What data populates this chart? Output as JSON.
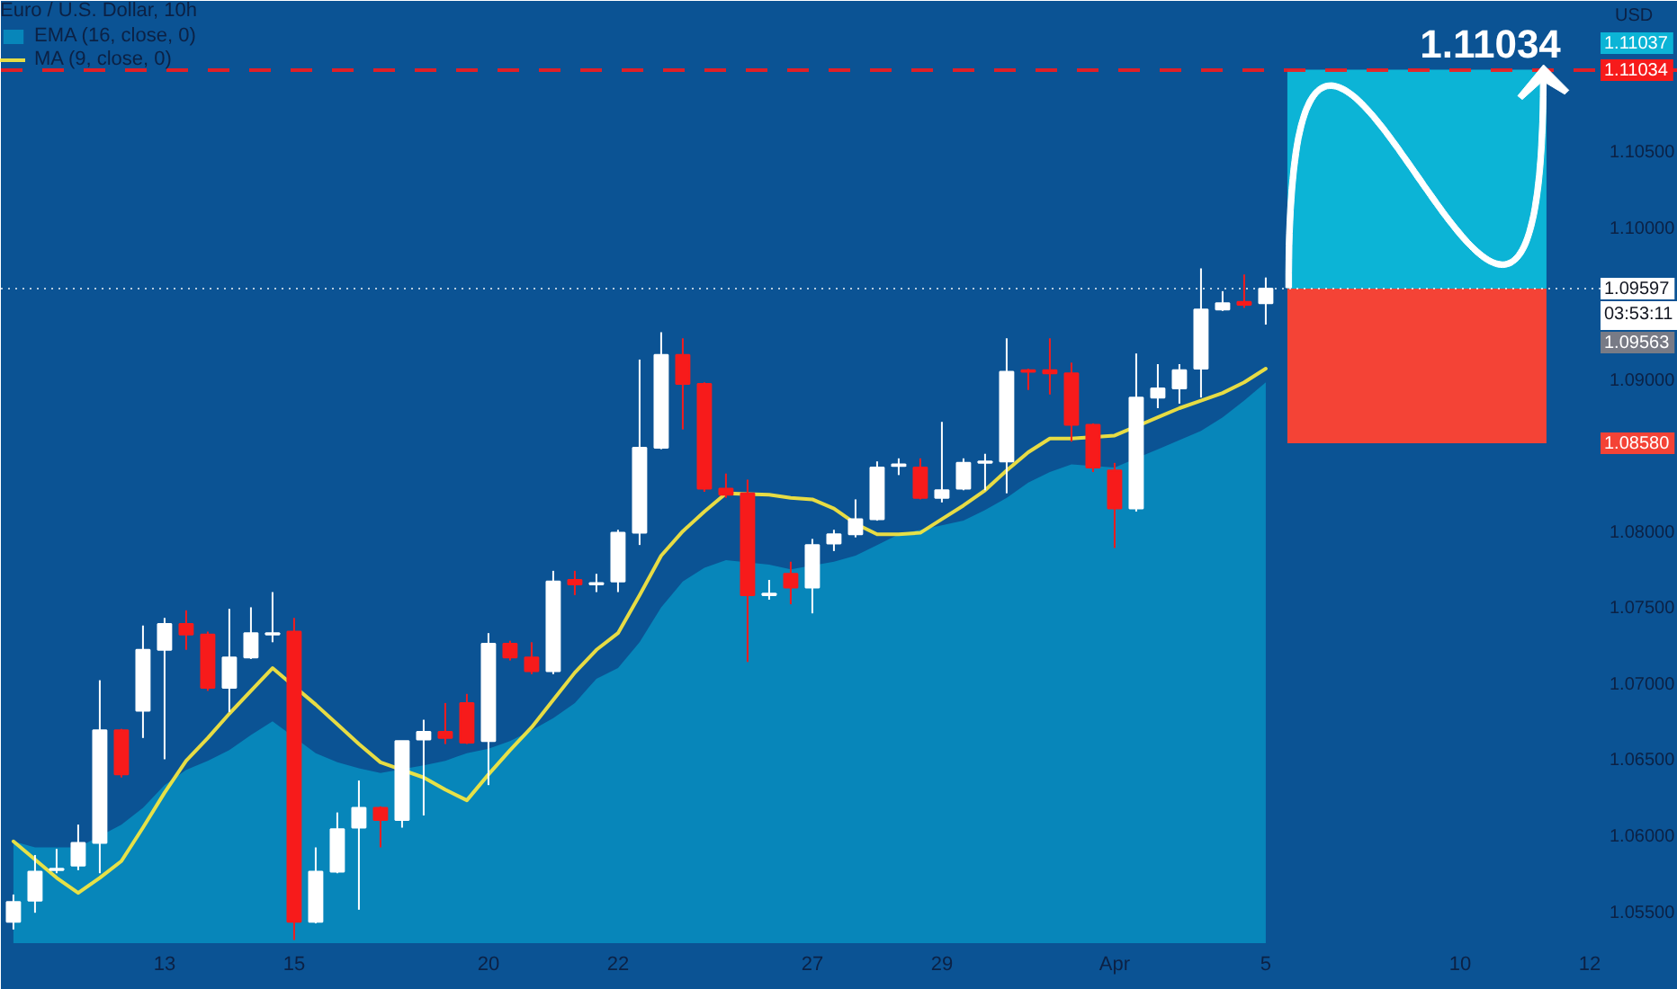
{
  "chart_data": {
    "type": "candlestick",
    "title": "Euro / U.S. Dollar, 10h",
    "ylabel": "USD",
    "categories": [
      null,
      null,
      null,
      null,
      null,
      null,
      null,
      "13",
      null,
      null,
      null,
      null,
      null,
      "15",
      null,
      null,
      null,
      null,
      null,
      null,
      null,
      null,
      "20",
      null,
      null,
      null,
      null,
      null,
      "22",
      null,
      null,
      null,
      null,
      null,
      null,
      null,
      null,
      "27",
      null,
      null,
      null,
      null,
      null,
      "29",
      null,
      null,
      null,
      null,
      null,
      null,
      null,
      "Apr",
      null,
      null,
      null,
      null,
      null,
      null,
      "5",
      null,
      null,
      null,
      null,
      null,
      null,
      null,
      null,
      "10",
      null,
      null,
      null,
      null,
      null,
      "12"
    ],
    "ohlc": [
      [
        1.0543,
        1.0561,
        1.0538,
        1.0556
      ],
      [
        1.0557,
        1.0587,
        1.0549,
        1.0576
      ],
      [
        1.0577,
        1.0591,
        1.0575,
        1.0578
      ],
      [
        1.058,
        1.0607,
        1.0577,
        1.0595
      ],
      [
        1.0595,
        1.0702,
        1.0575,
        1.0669
      ],
      [
        1.0669,
        1.067,
        1.0638,
        1.064
      ],
      [
        1.0682,
        1.0738,
        1.0664,
        1.0722
      ],
      [
        1.0722,
        1.0743,
        1.065,
        1.0739
      ],
      [
        1.0739,
        1.0748,
        1.0722,
        1.0732
      ],
      [
        1.0732,
        1.0734,
        1.0695,
        1.0697
      ],
      [
        1.0697,
        1.0749,
        1.0681,
        1.0717
      ],
      [
        1.0717,
        1.075,
        1.0716,
        1.0733
      ],
      [
        1.0732,
        1.076,
        1.0727,
        1.0733
      ],
      [
        1.0734,
        1.0743,
        1.0531,
        1.0543
      ],
      [
        1.0543,
        1.0592,
        1.0542,
        1.0576
      ],
      [
        1.0576,
        1.0615,
        1.0575,
        1.0604
      ],
      [
        1.0605,
        1.0636,
        1.0551,
        1.0618
      ],
      [
        1.0618,
        1.0619,
        1.0592,
        1.061
      ],
      [
        1.061,
        1.0662,
        1.0605,
        1.0662
      ],
      [
        1.0663,
        1.0676,
        1.0613,
        1.0668
      ],
      [
        1.0668,
        1.0687,
        1.066,
        1.0664
      ],
      [
        1.0687,
        1.0693,
        1.066,
        1.0661
      ],
      [
        1.0662,
        1.0733,
        1.0633,
        1.0726
      ],
      [
        1.0726,
        1.0728,
        1.0715,
        1.0717
      ],
      [
        1.0717,
        1.0727,
        1.0706,
        1.0708
      ],
      [
        1.0708,
        1.0774,
        1.0706,
        1.0767
      ],
      [
        1.0768,
        1.0774,
        1.0758,
        1.0765
      ],
      [
        1.0765,
        1.0772,
        1.076,
        1.0766
      ],
      [
        1.0767,
        1.0801,
        1.076,
        1.0799
      ],
      [
        1.0799,
        1.0913,
        1.0791,
        1.0855
      ],
      [
        1.0855,
        1.0931,
        1.0854,
        1.0916
      ],
      [
        1.0916,
        1.0927,
        1.0867,
        1.0897
      ],
      [
        1.0897,
        1.0898,
        1.0826,
        1.0828
      ],
      [
        1.0828,
        1.0838,
        1.0822,
        1.0824
      ],
      [
        1.0825,
        1.0834,
        1.0714,
        1.0758
      ],
      [
        1.0758,
        1.0768,
        1.0755,
        1.0759
      ],
      [
        1.0772,
        1.078,
        1.0752,
        1.0763
      ],
      [
        1.0763,
        1.0795,
        1.0746,
        1.0791
      ],
      [
        1.0792,
        1.0801,
        1.0787,
        1.0798
      ],
      [
        1.0798,
        1.0821,
        1.0796,
        1.0808
      ],
      [
        1.0808,
        1.0846,
        1.0807,
        1.0842
      ],
      [
        1.0843,
        1.0848,
        1.0837,
        1.0844
      ],
      [
        1.0842,
        1.0848,
        1.0821,
        1.0822
      ],
      [
        1.0822,
        1.0872,
        1.0819,
        1.0827
      ],
      [
        1.0828,
        1.0848,
        1.0827,
        1.0845
      ],
      [
        1.0845,
        1.0851,
        1.0827,
        1.0846
      ],
      [
        1.0846,
        1.0927,
        1.0825,
        1.0905
      ],
      [
        1.0906,
        1.0907,
        1.0893,
        1.0905
      ],
      [
        1.0906,
        1.0927,
        1.089,
        1.0904
      ],
      [
        1.0904,
        1.0911,
        1.0859,
        1.087
      ],
      [
        1.087,
        1.0871,
        1.0839,
        1.0842
      ],
      [
        1.084,
        1.0845,
        1.0789,
        1.0815
      ],
      [
        1.0815,
        1.0917,
        1.0813,
        1.0888
      ],
      [
        1.0888,
        1.091,
        1.0881,
        1.0894
      ],
      [
        1.0894,
        1.091,
        1.0884,
        1.0906
      ],
      [
        1.0907,
        1.0973,
        1.0888,
        1.0946
      ],
      [
        1.0946,
        1.0958,
        1.0945,
        1.095
      ],
      [
        1.0951,
        1.0969,
        1.0947,
        1.0949
      ],
      [
        1.095,
        1.0967,
        1.0936,
        1.09597
      ],
      null,
      null,
      null,
      null,
      null,
      null,
      null,
      null,
      null,
      null,
      null,
      null,
      null,
      null,
      null
    ],
    "colors": [
      "#ffffff",
      "#ffffff",
      "#ffffff",
      "#ffffff",
      "#ffffff",
      "#f71b1b",
      "#ffffff",
      "#ffffff",
      "#f71b1b",
      "#f71b1b",
      "#ffffff",
      "#ffffff",
      "#ffffff",
      "#f71b1b",
      "#ffffff",
      "#ffffff",
      "#ffffff",
      "#f71b1b",
      "#ffffff",
      "#ffffff",
      "#f71b1b",
      "#f71b1b",
      "#ffffff",
      "#f71b1b",
      "#f71b1b",
      "#ffffff",
      "#f71b1b",
      "#ffffff",
      "#ffffff",
      "#ffffff",
      "#ffffff",
      "#f71b1b",
      "#f71b1b",
      "#f71b1b",
      "#f71b1b",
      "#ffffff",
      "#f71b1b",
      "#ffffff",
      "#ffffff",
      "#ffffff",
      "#ffffff",
      "#ffffff",
      "#f71b1b",
      "#ffffff",
      "#ffffff",
      "#ffffff",
      "#ffffff",
      "#f71b1b",
      "#f71b1b",
      "#f71b1b",
      "#f71b1b",
      "#f71b1b",
      "#ffffff",
      "#ffffff",
      "#ffffff",
      "#ffffff",
      "#ffffff",
      "#f71b1b",
      "#ffffff",
      null,
      null,
      null,
      null,
      null,
      null,
      null,
      null,
      null,
      null,
      null,
      null,
      null,
      null,
      null
    ],
    "series": [
      {
        "name": "EMA (16, close, 0)",
        "type": "area",
        "color": "#0786ba",
        "values": [
          1.0596,
          1.0592,
          1.0592,
          1.0592,
          null,
          1.0607,
          1.0618,
          1.0633,
          1.0643,
          1.0649,
          1.0656,
          1.0666,
          1.0675,
          null,
          1.0654,
          1.0648,
          1.0644,
          1.0641,
          null,
          1.0646,
          1.0649,
          1.0654,
          1.0657,
          1.0662,
          1.0669,
          1.0677,
          1.0687,
          1.0703,
          1.071,
          1.0727,
          1.075,
          1.0767,
          1.0776,
          1.0781,
          null,
          1.0778,
          1.0775,
          null,
          1.078,
          1.0784,
          1.0791,
          1.0798,
          1.0801,
          1.0804,
          1.0807,
          1.0814,
          1.0822,
          1.0832,
          1.0839,
          1.0844,
          null,
          1.0842,
          null,
          1.0854,
          1.086,
          1.0866,
          1.0875,
          1.0886,
          1.0898,
          null,
          null,
          null,
          null,
          null,
          null,
          null,
          null,
          null,
          null,
          null,
          null,
          null,
          null,
          null
        ]
      },
      {
        "name": "MA (9, close, 0)",
        "type": "line",
        "color": "#ffeb3b",
        "values": [
          1.0596,
          1.0584,
          1.0572,
          1.0562,
          1.0572,
          1.0583,
          1.0605,
          1.0628,
          1.0649,
          1.0664,
          1.068,
          1.0695,
          1.071,
          null,
          1.0686,
          1.0673,
          1.066,
          1.0648,
          null,
          1.0638,
          1.063,
          1.0623,
          1.064,
          1.0656,
          1.0671,
          1.0689,
          1.0707,
          1.0722,
          1.0733,
          1.0758,
          1.0784,
          1.08,
          1.0813,
          1.0825,
          null,
          1.0824,
          1.0822,
          1.0821,
          1.0815,
          1.0805,
          1.0798,
          1.0798,
          1.0799,
          1.0808,
          1.0817,
          1.0827,
          1.084,
          1.0852,
          1.0861,
          1.0861,
          null,
          1.0863,
          null,
          1.0875,
          1.0881,
          1.0886,
          1.0891,
          1.0898,
          1.0907,
          null,
          null,
          null,
          null,
          null,
          null,
          null,
          null,
          null,
          null,
          null,
          null,
          null,
          null,
          null
        ]
      }
    ],
    "ylim": [
      1.0529,
      1.1149
    ],
    "yticks": [
      {
        "value": 1.055,
        "label": "1.05500"
      },
      {
        "value": 1.06,
        "label": "1.06000"
      },
      {
        "value": 1.065,
        "label": "1.06500"
      },
      {
        "value": 1.07,
        "label": "1.07000"
      },
      {
        "value": 1.075,
        "label": "1.07500"
      },
      {
        "value": 1.08,
        "label": "1.08000"
      },
      {
        "value": 1.09,
        "label": "1.09000"
      },
      {
        "value": 1.1,
        "label": "1.10000"
      },
      {
        "value": 1.105,
        "label": "1.10500"
      }
    ],
    "ref_lines": [
      {
        "axis": "y",
        "value": 1.11034,
        "label": "1.11034",
        "color": "#f71b1b",
        "line_style": "dashed"
      },
      {
        "axis": "y",
        "value": 1.09597,
        "label": "1.09597",
        "color": "#ffffff",
        "line_style": "dotted"
      }
    ],
    "bands": [
      {
        "axis": "y",
        "from": 1.09597,
        "to": 1.11037,
        "color": "#0cb4d6"
      },
      {
        "axis": "y",
        "from": 1.0858,
        "to": 1.09597,
        "color": "#f44336"
      }
    ],
    "annotations": [
      "1.11034",
      "03:53:11",
      "1.09563",
      "1.11037",
      "1.08580"
    ],
    "legend": "top left",
    "grid": false
  }
}
